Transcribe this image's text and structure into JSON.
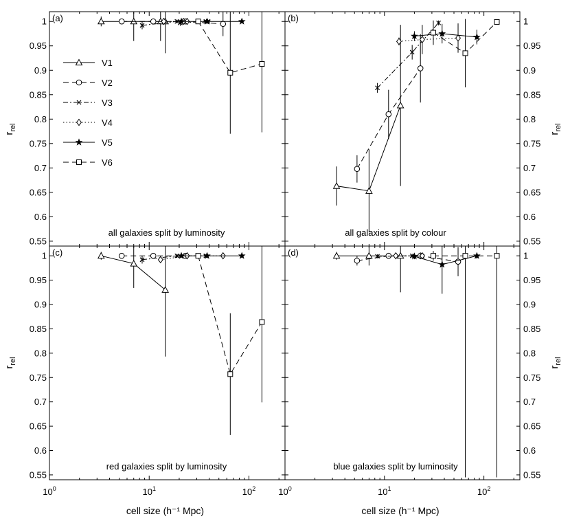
{
  "figure": {
    "xlabel": "cell size (h⁻¹ Mpc)",
    "ylabel_main": "r",
    "ylabel_sub": "rel",
    "xlim": [
      1,
      230
    ],
    "ylim": [
      0.54,
      1.02
    ],
    "x_scale": "log",
    "x_ticks": [
      1,
      10,
      100
    ],
    "x_tick_labels": [
      {
        "base": "10",
        "exp": "0"
      },
      {
        "base": "10",
        "exp": "1"
      },
      {
        "base": "10",
        "exp": "2"
      }
    ],
    "y_ticks": [
      0.55,
      0.6,
      0.65,
      0.7,
      0.75,
      0.8,
      0.85,
      0.9,
      0.95,
      1
    ],
    "y_tick_labels": [
      "0.55",
      "0.6",
      "0.65",
      "0.7",
      "0.75",
      "0.8",
      "0.85",
      "0.9",
      "0.95",
      "1"
    ]
  },
  "chart_data": [
    {
      "type": "line",
      "panel_label": "(a)",
      "annotation": "all galaxies split by luminosity",
      "legend": {
        "placement": "left",
        "entries": [
          "V1",
          "V2",
          "V3",
          "V4",
          "V5",
          "V6"
        ]
      },
      "series": [
        {
          "name": "V1",
          "x": [
            3.3,
            7,
            13,
            14.5
          ],
          "y": [
            1.0,
            1.0,
            1.0,
            1.0
          ],
          "err": [
            0.01,
            0.04,
            0.04,
            0.065
          ]
        },
        {
          "name": "V2",
          "x": [
            5.3,
            11,
            23,
            55
          ],
          "y": [
            1.0,
            1.0,
            1.0,
            0.995
          ],
          "err": [
            0.005,
            0.005,
            0.005,
            0.025
          ]
        },
        {
          "name": "V3",
          "x": [
            8.5,
            19,
            20.5,
            37,
            39
          ],
          "y": [
            0.992,
            1.0,
            0.997,
            1.0,
            1.0
          ],
          "err": [
            0.008,
            0.004,
            0.006,
            0.003,
            0.003
          ]
        },
        {
          "name": "V4",
          "x": [
            14,
            22,
            24
          ],
          "y": [
            1.0,
            1.0,
            1.0
          ],
          "err": [
            0.004,
            0.004,
            0.004
          ]
        },
        {
          "name": "V5",
          "x": [
            21,
            38,
            85
          ],
          "y": [
            1.0,
            1.0,
            1.0
          ],
          "err": [
            0.003,
            0.003,
            0.003
          ]
        },
        {
          "name": "V6",
          "x": [
            31,
            65,
            135
          ],
          "y": [
            1.0,
            0.895,
            0.913
          ],
          "err": [
            0.005,
            0.125,
            0.14
          ]
        }
      ]
    },
    {
      "type": "line",
      "panel_label": "(b)",
      "annotation": "all galaxies split by colour",
      "series": [
        {
          "name": "V1",
          "x": [
            3.3,
            7,
            14.5
          ],
          "y": [
            0.663,
            0.653,
            0.828
          ],
          "err": [
            0.04,
            0.085,
            0.165
          ]
        },
        {
          "name": "V2",
          "x": [
            5.3,
            11,
            23
          ],
          "y": [
            0.698,
            0.81,
            0.904
          ],
          "err": [
            0.028,
            0.05,
            0.07
          ]
        },
        {
          "name": "V3",
          "x": [
            8.5,
            19,
            35
          ],
          "y": [
            0.864,
            0.937,
            0.997
          ],
          "err": [
            0.01,
            0.015,
            0.005
          ]
        },
        {
          "name": "V4",
          "x": [
            14,
            24,
            55
          ],
          "y": [
            0.959,
            0.963,
            0.966
          ],
          "err": [
            0.008,
            0.03,
            0.03
          ]
        },
        {
          "name": "V5",
          "x": [
            20,
            38,
            85
          ],
          "y": [
            0.97,
            0.975,
            0.968
          ],
          "err": [
            0.01,
            0.02,
            0.015
          ]
        },
        {
          "name": "V6",
          "x": [
            31,
            65,
            135
          ],
          "y": [
            0.977,
            0.935,
            0.999
          ],
          "err": [
            0.025,
            0.07,
            0.003
          ]
        }
      ]
    },
    {
      "type": "line",
      "panel_label": "(c)",
      "annotation": "red galaxies split by luminosity",
      "series": [
        {
          "name": "V1",
          "x": [
            3.3,
            7,
            14.5
          ],
          "y": [
            1.0,
            0.984,
            0.93
          ],
          "err": [
            0.008,
            0.05,
            0.137
          ]
        },
        {
          "name": "V2",
          "x": [
            5.3,
            11,
            23
          ],
          "y": [
            1.0,
            1.0,
            1.0
          ],
          "err": [
            0.005,
            0.005,
            0.005
          ]
        },
        {
          "name": "V3",
          "x": [
            8.5,
            19,
            37
          ],
          "y": [
            0.992,
            1.0,
            1.0
          ],
          "err": [
            0.008,
            0.004,
            0.003
          ]
        },
        {
          "name": "V4",
          "x": [
            13,
            24,
            55
          ],
          "y": [
            0.992,
            1.0,
            1.0
          ],
          "err": [
            0.006,
            0.004,
            0.004
          ]
        },
        {
          "name": "V5",
          "x": [
            21,
            38,
            85
          ],
          "y": [
            1.0,
            1.0,
            1.0
          ],
          "err": [
            0.003,
            0.003,
            0.003
          ]
        },
        {
          "name": "V6",
          "x": [
            31,
            65,
            135
          ],
          "y": [
            1.0,
            0.757,
            0.864
          ],
          "err": [
            0.005,
            0.125,
            0.165
          ]
        }
      ]
    },
    {
      "type": "line",
      "panel_label": "(d)",
      "annotation": "blue galaxies split by luminosity",
      "series": [
        {
          "name": "V1",
          "x": [
            3.3,
            7,
            14.5
          ],
          "y": [
            1.0,
            1.0,
            1.0
          ],
          "err": [
            0.008,
            0.02,
            0.075
          ]
        },
        {
          "name": "V2",
          "x": [
            5.3,
            11,
            23,
            55
          ],
          "y": [
            0.99,
            1.0,
            1.0,
            0.988
          ],
          "err": [
            0.01,
            0.006,
            0.007,
            0.03
          ]
        },
        {
          "name": "V3",
          "x": [
            8.5,
            19,
            24
          ],
          "y": [
            0.999,
            1.0,
            0.999
          ],
          "err": [
            0.004,
            0.004,
            0.004
          ]
        },
        {
          "name": "V4",
          "x": [
            13,
            24
          ],
          "y": [
            1.0,
            1.0
          ],
          "err": [
            0.005,
            0.005
          ]
        },
        {
          "name": "V5",
          "x": [
            20,
            38,
            85
          ],
          "y": [
            0.999,
            0.982,
            1.0
          ],
          "err": [
            0.006,
            0.06,
            0.006
          ]
        },
        {
          "name": "V6",
          "x": [
            31,
            65,
            135
          ],
          "y": [
            1.0,
            1.0,
            1.0
          ],
          "err": [
            0.01,
            0.455,
            0.455
          ]
        }
      ]
    }
  ]
}
